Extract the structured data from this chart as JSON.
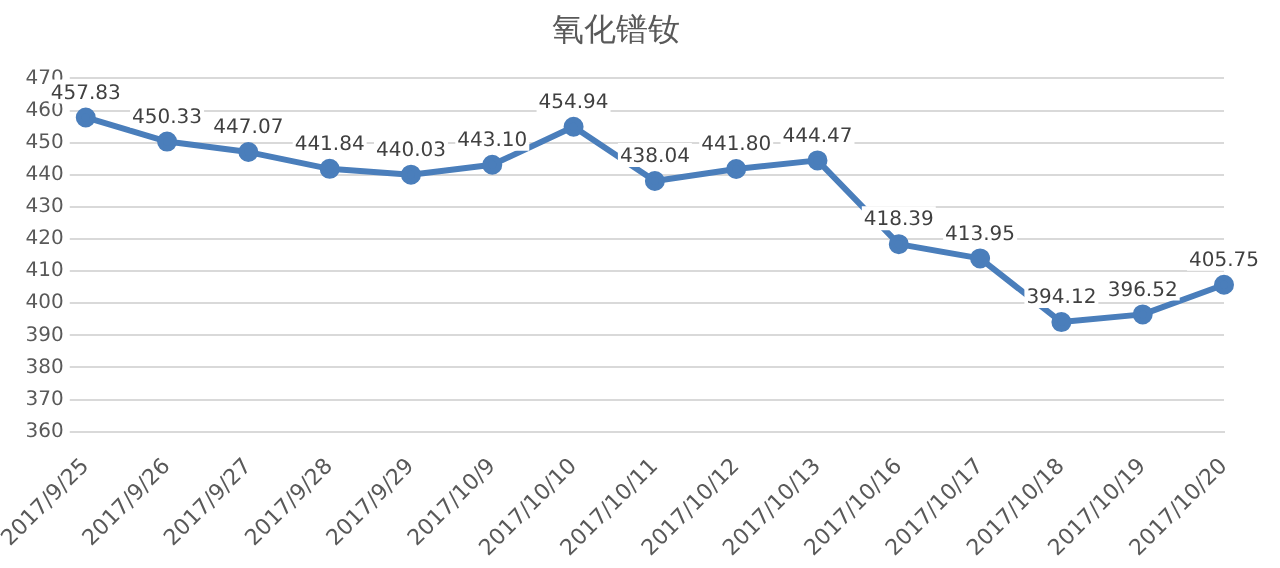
{
  "chart_data": {
    "type": "line",
    "title": "氧化镨钕",
    "categories": [
      "2017/9/25",
      "2017/9/26",
      "2017/9/27",
      "2017/9/28",
      "2017/9/29",
      "2017/10/9",
      "2017/10/10",
      "2017/10/11",
      "2017/10/12",
      "2017/10/13",
      "2017/10/16",
      "2017/10/17",
      "2017/10/18",
      "2017/10/19",
      "2017/10/20"
    ],
    "series": [
      {
        "color": "#4a7ebb",
        "values": [
          457.83,
          450.33,
          447.07,
          441.84,
          440.03,
          443.1,
          454.94,
          438.04,
          441.8,
          444.47,
          418.39,
          413.95,
          394.12,
          396.52,
          405.75
        ],
        "value_labels": [
          "457.83",
          "450.33",
          "447.07",
          "441.84",
          "440.03",
          "443.10",
          "454.94",
          "438.04",
          "441.80",
          "444.47",
          "418.39",
          "413.95",
          "394.12",
          "396.52",
          "405.75"
        ]
      }
    ],
    "ylim": [
      360,
      470
    ],
    "yticks": [
      360,
      370,
      380,
      390,
      400,
      410,
      420,
      430,
      440,
      450,
      460,
      470
    ],
    "grid": "y",
    "legend": false,
    "marker": "circle",
    "line_style": "solid",
    "data_labels": true
  }
}
